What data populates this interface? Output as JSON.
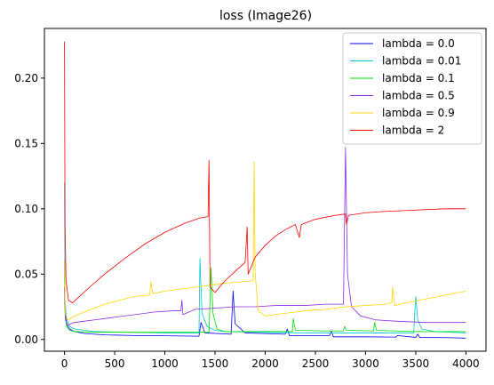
{
  "chart_data": {
    "type": "line",
    "title": "loss (Image26)",
    "xlabel": "",
    "ylabel": "",
    "xlim": [
      -200,
      4200
    ],
    "ylim": [
      -0.009,
      0.238
    ],
    "xticks": [
      0,
      500,
      1000,
      1500,
      2000,
      2500,
      3000,
      3500,
      4000
    ],
    "yticks": [
      0.0,
      0.05,
      0.1,
      0.15,
      0.2
    ],
    "ytick_labels": [
      "0.00",
      "0.05",
      "0.10",
      "0.15",
      "0.20"
    ],
    "legend_position": "top-right",
    "grid": false,
    "series": [
      {
        "name": "lambda = 0.0",
        "color": "#0000ff",
        "points": [
          [
            0,
            0.06
          ],
          [
            5,
            0.025
          ],
          [
            20,
            0.012
          ],
          [
            50,
            0.008
          ],
          [
            100,
            0.006
          ],
          [
            200,
            0.0045
          ],
          [
            400,
            0.0035
          ],
          [
            700,
            0.003
          ],
          [
            1000,
            0.0028
          ],
          [
            1340,
            0.0025
          ],
          [
            1360,
            0.013
          ],
          [
            1400,
            0.005
          ],
          [
            1660,
            0.004
          ],
          [
            1680,
            0.037
          ],
          [
            1700,
            0.012
          ],
          [
            1800,
            0.005
          ],
          [
            2200,
            0.004
          ],
          [
            2220,
            0.008
          ],
          [
            2240,
            0.003
          ],
          [
            2640,
            0.003
          ],
          [
            2660,
            0.006
          ],
          [
            2680,
            0.002
          ],
          [
            3000,
            0.002
          ],
          [
            3300,
            0.0018
          ],
          [
            3320,
            0.003
          ],
          [
            3500,
            0.0016
          ],
          [
            3520,
            0.004
          ],
          [
            3540,
            0.0015
          ],
          [
            3800,
            0.0014
          ],
          [
            4000,
            0.001
          ]
        ]
      },
      {
        "name": "lambda = 0.01",
        "color": "#00c8d2",
        "points": [
          [
            0,
            0.12
          ],
          [
            5,
            0.03
          ],
          [
            20,
            0.016
          ],
          [
            50,
            0.01
          ],
          [
            100,
            0.008
          ],
          [
            300,
            0.006
          ],
          [
            600,
            0.0055
          ],
          [
            1000,
            0.005
          ],
          [
            1340,
            0.005
          ],
          [
            1350,
            0.062
          ],
          [
            1370,
            0.02
          ],
          [
            1420,
            0.01
          ],
          [
            1500,
            0.007
          ],
          [
            1600,
            0.006
          ],
          [
            2000,
            0.0055
          ],
          [
            2400,
            0.005
          ],
          [
            2800,
            0.005
          ],
          [
            3200,
            0.005
          ],
          [
            3480,
            0.005
          ],
          [
            3500,
            0.033
          ],
          [
            3520,
            0.015
          ],
          [
            3560,
            0.008
          ],
          [
            3700,
            0.006
          ],
          [
            4000,
            0.005
          ]
        ]
      },
      {
        "name": "lambda = 0.1",
        "color": "#00e000",
        "points": [
          [
            0,
            0.05
          ],
          [
            5,
            0.02
          ],
          [
            20,
            0.01
          ],
          [
            50,
            0.007
          ],
          [
            100,
            0.006
          ],
          [
            300,
            0.0055
          ],
          [
            800,
            0.0055
          ],
          [
            1200,
            0.0055
          ],
          [
            1440,
            0.0055
          ],
          [
            1460,
            0.055
          ],
          [
            1480,
            0.02
          ],
          [
            1520,
            0.008
          ],
          [
            1600,
            0.006
          ],
          [
            2000,
            0.006
          ],
          [
            2270,
            0.006
          ],
          [
            2280,
            0.016
          ],
          [
            2300,
            0.007
          ],
          [
            2600,
            0.0065
          ],
          [
            2780,
            0.0065
          ],
          [
            2790,
            0.01
          ],
          [
            2810,
            0.007
          ],
          [
            3080,
            0.0065
          ],
          [
            3090,
            0.013
          ],
          [
            3110,
            0.007
          ],
          [
            3500,
            0.006
          ],
          [
            4000,
            0.006
          ]
        ]
      },
      {
        "name": "lambda = 0.5",
        "color": "#8a2be2",
        "points": [
          [
            0,
            0.04
          ],
          [
            10,
            0.015
          ],
          [
            30,
            0.011
          ],
          [
            100,
            0.013
          ],
          [
            200,
            0.014
          ],
          [
            300,
            0.015
          ],
          [
            500,
            0.017
          ],
          [
            700,
            0.019
          ],
          [
            900,
            0.021
          ],
          [
            1100,
            0.022
          ],
          [
            1160,
            0.022
          ],
          [
            1170,
            0.03
          ],
          [
            1180,
            0.019
          ],
          [
            1300,
            0.023
          ],
          [
            1500,
            0.024
          ],
          [
            1700,
            0.025
          ],
          [
            1900,
            0.025
          ],
          [
            2100,
            0.026
          ],
          [
            2400,
            0.026
          ],
          [
            2600,
            0.027
          ],
          [
            2780,
            0.027
          ],
          [
            2800,
            0.147
          ],
          [
            2820,
            0.05
          ],
          [
            2860,
            0.025
          ],
          [
            2950,
            0.018
          ],
          [
            3100,
            0.015
          ],
          [
            3300,
            0.014
          ],
          [
            3600,
            0.013
          ],
          [
            4000,
            0.013
          ]
        ]
      },
      {
        "name": "lambda = 0.9",
        "color": "#ffd700",
        "points": [
          [
            0,
            0.06
          ],
          [
            10,
            0.02
          ],
          [
            30,
            0.015
          ],
          [
            60,
            0.016
          ],
          [
            100,
            0.018
          ],
          [
            200,
            0.021
          ],
          [
            300,
            0.024
          ],
          [
            400,
            0.027
          ],
          [
            500,
            0.029
          ],
          [
            600,
            0.031
          ],
          [
            700,
            0.033
          ],
          [
            850,
            0.034
          ],
          [
            860,
            0.044
          ],
          [
            880,
            0.035
          ],
          [
            1000,
            0.037
          ],
          [
            1200,
            0.039
          ],
          [
            1400,
            0.041
          ],
          [
            1600,
            0.043
          ],
          [
            1750,
            0.044
          ],
          [
            1880,
            0.045
          ],
          [
            1890,
            0.136
          ],
          [
            1900,
            0.05
          ],
          [
            1930,
            0.022
          ],
          [
            2000,
            0.018
          ],
          [
            2100,
            0.019
          ],
          [
            2200,
            0.02
          ],
          [
            2400,
            0.022
          ],
          [
            2600,
            0.023
          ],
          [
            2800,
            0.025
          ],
          [
            3000,
            0.026
          ],
          [
            3200,
            0.027
          ],
          [
            3260,
            0.028
          ],
          [
            3270,
            0.04
          ],
          [
            3290,
            0.026
          ],
          [
            3400,
            0.028
          ],
          [
            3600,
            0.031
          ],
          [
            3800,
            0.034
          ],
          [
            4000,
            0.037
          ]
        ]
      },
      {
        "name": "lambda = 2",
        "color": "#ff0000",
        "points": [
          [
            0,
            0.228
          ],
          [
            5,
            0.09
          ],
          [
            15,
            0.045
          ],
          [
            40,
            0.03
          ],
          [
            80,
            0.028
          ],
          [
            150,
            0.033
          ],
          [
            250,
            0.04
          ],
          [
            400,
            0.05
          ],
          [
            600,
            0.062
          ],
          [
            800,
            0.073
          ],
          [
            1000,
            0.082
          ],
          [
            1200,
            0.089
          ],
          [
            1350,
            0.093
          ],
          [
            1430,
            0.094
          ],
          [
            1440,
            0.137
          ],
          [
            1450,
            0.04
          ],
          [
            1500,
            0.036
          ],
          [
            1600,
            0.045
          ],
          [
            1700,
            0.052
          ],
          [
            1800,
            0.059
          ],
          [
            1820,
            0.086
          ],
          [
            1830,
            0.05
          ],
          [
            1900,
            0.063
          ],
          [
            2000,
            0.072
          ],
          [
            2100,
            0.079
          ],
          [
            2200,
            0.084
          ],
          [
            2300,
            0.088
          ],
          [
            2340,
            0.078
          ],
          [
            2360,
            0.088
          ],
          [
            2500,
            0.092
          ],
          [
            2700,
            0.095
          ],
          [
            2800,
            0.096
          ],
          [
            2810,
            0.088
          ],
          [
            2830,
            0.095
          ],
          [
            3000,
            0.097
          ],
          [
            3200,
            0.098
          ],
          [
            3500,
            0.099
          ],
          [
            3800,
            0.1
          ],
          [
            4000,
            0.1
          ]
        ]
      }
    ]
  }
}
